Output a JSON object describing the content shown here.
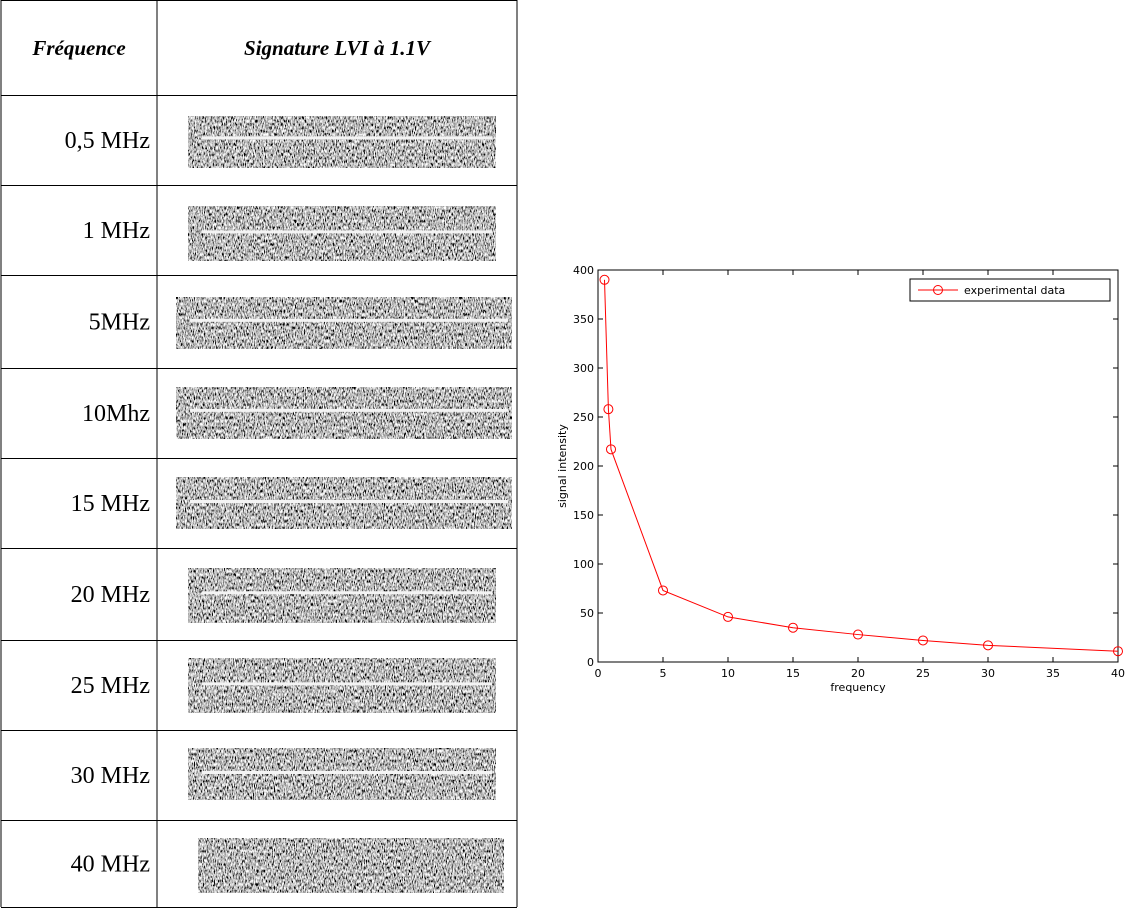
{
  "table": {
    "header": [
      "Fréquence",
      "Signature LVI à 1.1V"
    ],
    "rows": [
      "0,5 MHz",
      "1 MHz",
      "5MHz",
      "10Mhz",
      "15 MHz",
      "20 MHz",
      "25 MHz",
      "30 MHz",
      "40 MHz"
    ]
  },
  "chart_data": {
    "type": "line",
    "x": [
      0.5,
      0.8,
      1,
      5,
      10,
      15,
      20,
      25,
      30,
      40
    ],
    "series": [
      {
        "name": "experimental data",
        "color": "#ff0000",
        "values": [
          390,
          258,
          217,
          73,
          46,
          35,
          28,
          22,
          17,
          11
        ]
      }
    ],
    "xlabel": "frequency",
    "ylabel": "signal intensity",
    "xlim": [
      0,
      40
    ],
    "ylim": [
      0,
      400
    ],
    "xticks": [
      0,
      5,
      10,
      15,
      20,
      25,
      30,
      35,
      40
    ],
    "yticks": [
      0,
      50,
      100,
      150,
      200,
      250,
      300,
      350,
      400
    ],
    "legend": "upper right",
    "grid": false
  }
}
